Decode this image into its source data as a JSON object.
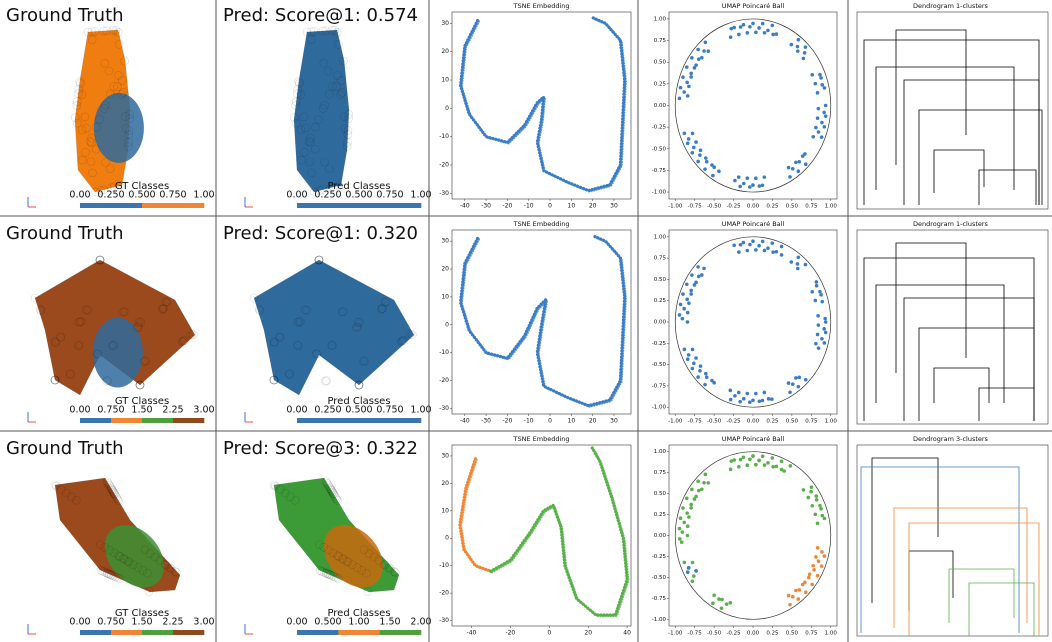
{
  "rows": [
    {
      "gt_title": "Ground Truth",
      "gt_colorbar_label": "GT Classes",
      "gt_colorbar_ticks": [
        "0.00",
        "0.250",
        "0.500",
        "0.750",
        "1.00"
      ],
      "gt_colorbar_colors": [
        "#3b75af",
        "#ef8636"
      ],
      "pred_title": "Pred: Score@1: 0.574",
      "pred_colorbar_label": "Pred Classes",
      "pred_colorbar_ticks": [
        "0.00",
        "0.250",
        "0.500",
        "0.750",
        "1.00"
      ],
      "pred_colorbar_colors": [
        "#3b75af"
      ],
      "tsne_title": "TSNE Embedding",
      "tsne_xlim": [
        -46,
        38
      ],
      "tsne_ylim": [
        -32,
        34
      ],
      "tsne_xticks": [
        -40,
        -30,
        -20,
        -10,
        0,
        10,
        20,
        30
      ],
      "tsne_yticks": [
        -30,
        -20,
        -10,
        0,
        10,
        20,
        30
      ],
      "umap_title": "UMAP Poincaré Ball",
      "umap_lim": [
        -1.08,
        1.08
      ],
      "umap_xticks": [
        "-1.00",
        "-0.75",
        "-0.50",
        "-0.25",
        "0.00",
        "0.25",
        "0.50",
        "0.75",
        "1.00"
      ],
      "umap_yticks": [
        "-1.00",
        "-0.75",
        "-0.50",
        "-0.25",
        "0.00",
        "0.25",
        "0.50",
        "0.75",
        "1.00"
      ],
      "dendro_title": "Dendrogram 1-clusters"
    },
    {
      "gt_title": "Ground Truth",
      "gt_colorbar_label": "GT Classes",
      "gt_colorbar_ticks": [
        "0.00",
        "0.750",
        "1.50",
        "2.25",
        "3.00"
      ],
      "gt_colorbar_colors": [
        "#3b75af",
        "#ef8636",
        "#519e3e",
        "#8d4a1d"
      ],
      "pred_title": "Pred: Score@1: 0.320",
      "pred_colorbar_label": "Pred Classes",
      "pred_colorbar_ticks": [
        "0.00",
        "0.250",
        "0.500",
        "0.750",
        "1.00"
      ],
      "pred_colorbar_colors": [
        "#3b75af"
      ],
      "tsne_title": "TSNE Embedding",
      "tsne_xlim": [
        -46,
        38
      ],
      "tsne_ylim": [
        -32,
        34
      ],
      "tsne_xticks": [
        -40,
        -30,
        -20,
        -10,
        0,
        10,
        20,
        30
      ],
      "tsne_yticks": [
        -30,
        -20,
        -10,
        0,
        10,
        20,
        30
      ],
      "umap_title": "UMAP Poincaré Ball",
      "umap_lim": [
        -1.08,
        1.08
      ],
      "umap_xticks": [
        "-1.00",
        "-0.75",
        "-0.50",
        "-0.25",
        "0.00",
        "0.25",
        "0.50",
        "0.75",
        "1.00"
      ],
      "umap_yticks": [
        "-1.00",
        "-0.75",
        "-0.50",
        "-0.25",
        "0.00",
        "0.25",
        "0.50",
        "0.75",
        "1.00"
      ],
      "dendro_title": "Dendrogram 1-clusters"
    },
    {
      "gt_title": "Ground Truth",
      "gt_colorbar_label": "GT Classes",
      "gt_colorbar_ticks": [
        "0.00",
        "0.750",
        "1.50",
        "2.25",
        "3.00"
      ],
      "gt_colorbar_colors": [
        "#3b75af",
        "#ef8636",
        "#519e3e",
        "#8d4a1d"
      ],
      "pred_title": "Pred: Score@3: 0.322",
      "pred_colorbar_label": "Pred Classes",
      "pred_colorbar_ticks": [
        "0.00",
        "0.500",
        "1.00",
        "1.50",
        "2.00"
      ],
      "pred_colorbar_colors": [
        "#3b75af",
        "#ef8636",
        "#519e3e"
      ],
      "tsne_title": "TSNE Embedding",
      "tsne_xlim": [
        -50,
        42
      ],
      "tsne_ylim": [
        -32,
        34
      ],
      "tsne_xticks": [
        -40,
        -20,
        0,
        20,
        40
      ],
      "tsne_yticks": [
        -30,
        -20,
        -10,
        0,
        10,
        20,
        30
      ],
      "umap_title": "UMAP Poincaré Ball",
      "umap_lim": [
        -1.08,
        1.08
      ],
      "umap_xticks": [
        "-1.00",
        "-0.75",
        "-0.50",
        "-0.25",
        "0.00",
        "0.25",
        "0.50",
        "0.75",
        "1.00"
      ],
      "umap_yticks": [
        "-1.00",
        "-0.75",
        "-0.50",
        "-0.25",
        "0.00",
        "0.25",
        "0.50",
        "0.75",
        "1.00"
      ],
      "dendro_title": "Dendrogram 3-clusters"
    }
  ]
}
